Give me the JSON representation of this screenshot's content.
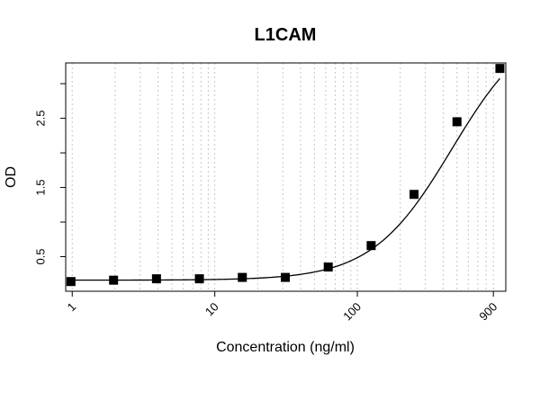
{
  "chart_data": {
    "type": "scatter",
    "title": "L1CAM",
    "xlabel": "Concentration (ng/ml)",
    "ylabel": "OD",
    "x_scale": "log",
    "xlim": [
      0.9,
      1100
    ],
    "ylim": [
      0.0,
      3.3
    ],
    "x_tick_values": [
      1,
      10,
      100,
      900
    ],
    "x_tick_labels": [
      "1",
      "10",
      "100",
      "900"
    ],
    "x_grid_values": [
      1,
      2,
      3,
      4,
      5,
      6,
      7,
      8,
      9,
      10,
      20,
      30,
      40,
      50,
      60,
      70,
      80,
      90,
      100,
      200,
      300,
      400,
      500,
      600,
      700,
      800,
      900
    ],
    "y_tick_values": [
      0.5,
      1.0,
      1.5,
      2.0,
      2.5,
      3.0
    ],
    "y_tick_labels": [
      "0.5",
      "",
      "1.5",
      "",
      "2.5",
      ""
    ],
    "grid": true,
    "x": [
      0.98,
      1.95,
      3.9,
      7.8,
      15.6,
      31.25,
      62.5,
      125,
      250,
      500,
      1000
    ],
    "y": [
      0.14,
      0.16,
      0.18,
      0.18,
      0.2,
      0.2,
      0.35,
      0.66,
      1.4,
      2.45,
      3.22
    ],
    "fit": {
      "model": "4PL",
      "bottom": 0.16,
      "top": 3.95,
      "ec50": 460,
      "hill": 1.55
    }
  }
}
